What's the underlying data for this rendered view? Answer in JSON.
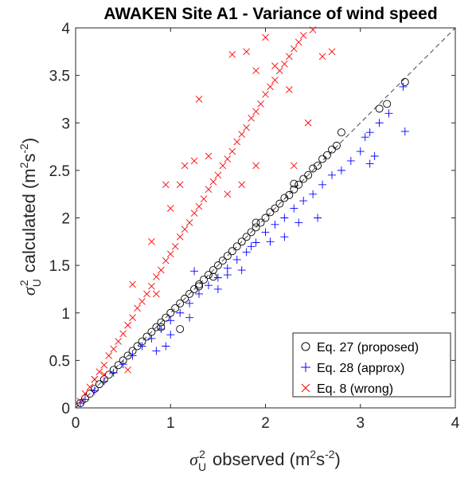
{
  "chart_data": {
    "type": "scatter",
    "title": "AWAKEN Site A1 - Variance of wind speed",
    "xlabel": "σU2 observed (m2s-2)",
    "ylabel": "σU2 calculated (m2s-2)",
    "xlim": [
      0,
      4
    ],
    "ylim": [
      0,
      4
    ],
    "xticks": [
      "0",
      "1",
      "2",
      "3",
      "4"
    ],
    "yticks": [
      "0",
      "0.5",
      "1",
      "1.5",
      "2",
      "2.5",
      "3",
      "3.5",
      "4"
    ],
    "grid": false,
    "legend_position": "bottom-right",
    "reference_line": {
      "style": "dashed",
      "color": "#333333",
      "from": [
        0,
        0
      ],
      "to": [
        4,
        4
      ]
    },
    "series": [
      {
        "name": "Eq. 27 (proposed)",
        "marker": "circle",
        "color": "#000000",
        "points": [
          [
            0.05,
            0.05
          ],
          [
            0.1,
            0.1
          ],
          [
            0.15,
            0.15
          ],
          [
            0.2,
            0.2
          ],
          [
            0.25,
            0.25
          ],
          [
            0.3,
            0.3
          ],
          [
            0.35,
            0.35
          ],
          [
            0.4,
            0.4
          ],
          [
            0.45,
            0.45
          ],
          [
            0.5,
            0.5
          ],
          [
            0.55,
            0.55
          ],
          [
            0.6,
            0.6
          ],
          [
            0.65,
            0.65
          ],
          [
            0.7,
            0.7
          ],
          [
            0.75,
            0.75
          ],
          [
            0.8,
            0.8
          ],
          [
            0.85,
            0.85
          ],
          [
            0.9,
            0.9
          ],
          [
            0.95,
            0.95
          ],
          [
            1.0,
            1.0
          ],
          [
            1.05,
            1.05
          ],
          [
            1.1,
            1.1
          ],
          [
            1.15,
            1.15
          ],
          [
            1.2,
            1.2
          ],
          [
            1.25,
            1.25
          ],
          [
            1.3,
            1.3
          ],
          [
            1.35,
            1.35
          ],
          [
            1.4,
            1.4
          ],
          [
            1.45,
            1.45
          ],
          [
            1.5,
            1.5
          ],
          [
            1.55,
            1.55
          ],
          [
            1.6,
            1.6
          ],
          [
            1.65,
            1.65
          ],
          [
            1.7,
            1.7
          ],
          [
            1.75,
            1.75
          ],
          [
            1.8,
            1.8
          ],
          [
            1.85,
            1.85
          ],
          [
            1.9,
            1.9
          ],
          [
            1.95,
            1.95
          ],
          [
            2.0,
            2.0
          ],
          [
            2.05,
            2.06
          ],
          [
            2.1,
            2.1
          ],
          [
            2.15,
            2.15
          ],
          [
            2.2,
            2.21
          ],
          [
            2.25,
            2.24
          ],
          [
            2.3,
            2.3
          ],
          [
            2.35,
            2.35
          ],
          [
            2.4,
            2.41
          ],
          [
            2.45,
            2.45
          ],
          [
            2.5,
            2.52
          ],
          [
            2.55,
            2.55
          ],
          [
            2.6,
            2.62
          ],
          [
            2.65,
            2.66
          ],
          [
            2.7,
            2.72
          ],
          [
            2.75,
            2.76
          ],
          [
            2.8,
            2.9
          ],
          [
            3.2,
            3.15
          ],
          [
            3.28,
            3.2
          ],
          [
            3.47,
            3.43
          ],
          [
            1.1,
            0.83
          ],
          [
            1.3,
            1.28
          ],
          [
            0.9,
            0.85
          ],
          [
            1.45,
            1.38
          ],
          [
            1.9,
            1.95
          ],
          [
            2.3,
            2.36
          ]
        ]
      },
      {
        "name": "Eq. 28 (approx)",
        "marker": "plus",
        "color": "#0000ff",
        "points": [
          [
            0.05,
            0.05
          ],
          [
            0.1,
            0.09
          ],
          [
            0.2,
            0.18
          ],
          [
            0.3,
            0.28
          ],
          [
            0.4,
            0.37
          ],
          [
            0.5,
            0.46
          ],
          [
            0.6,
            0.55
          ],
          [
            0.7,
            0.65
          ],
          [
            0.8,
            0.73
          ],
          [
            0.9,
            0.83
          ],
          [
            1.0,
            0.92
          ],
          [
            1.1,
            1.0
          ],
          [
            1.2,
            1.1
          ],
          [
            1.3,
            1.2
          ],
          [
            1.4,
            1.29
          ],
          [
            1.5,
            1.37
          ],
          [
            1.6,
            1.47
          ],
          [
            1.7,
            1.56
          ],
          [
            1.8,
            1.64
          ],
          [
            1.9,
            1.74
          ],
          [
            2.0,
            1.85
          ],
          [
            2.1,
            1.93
          ],
          [
            2.2,
            2.0
          ],
          [
            2.3,
            2.1
          ],
          [
            2.4,
            2.18
          ],
          [
            2.5,
            2.25
          ],
          [
            2.6,
            2.35
          ],
          [
            2.7,
            2.45
          ],
          [
            2.8,
            2.5
          ],
          [
            2.9,
            2.6
          ],
          [
            3.0,
            2.7
          ],
          [
            3.05,
            2.85
          ],
          [
            3.1,
            2.9
          ],
          [
            3.2,
            3.0
          ],
          [
            3.3,
            3.1
          ],
          [
            3.45,
            3.38
          ],
          [
            3.47,
            2.91
          ],
          [
            3.1,
            2.57
          ],
          [
            3.15,
            2.65
          ],
          [
            2.55,
            2.0
          ],
          [
            1.6,
            1.4
          ],
          [
            1.5,
            1.25
          ],
          [
            1.2,
            0.95
          ],
          [
            1.0,
            0.77
          ],
          [
            0.95,
            0.65
          ],
          [
            0.85,
            0.6
          ],
          [
            1.25,
            1.44
          ],
          [
            1.85,
            1.7
          ],
          [
            2.05,
            1.75
          ],
          [
            2.2,
            1.8
          ],
          [
            2.35,
            1.95
          ],
          [
            1.75,
            1.45
          ]
        ]
      },
      {
        "name": "Eq. 8 (wrong)",
        "marker": "x",
        "color": "#ff0000",
        "points": [
          [
            0.05,
            0.07
          ],
          [
            0.1,
            0.15
          ],
          [
            0.15,
            0.22
          ],
          [
            0.2,
            0.3
          ],
          [
            0.25,
            0.38
          ],
          [
            0.3,
            0.45
          ],
          [
            0.35,
            0.55
          ],
          [
            0.4,
            0.62
          ],
          [
            0.45,
            0.7
          ],
          [
            0.5,
            0.78
          ],
          [
            0.55,
            0.87
          ],
          [
            0.6,
            0.95
          ],
          [
            0.65,
            1.05
          ],
          [
            0.7,
            1.12
          ],
          [
            0.75,
            1.2
          ],
          [
            0.8,
            1.28
          ],
          [
            0.85,
            1.38
          ],
          [
            0.9,
            1.45
          ],
          [
            0.95,
            1.55
          ],
          [
            1.0,
            1.62
          ],
          [
            1.05,
            1.7
          ],
          [
            1.1,
            1.8
          ],
          [
            1.15,
            1.88
          ],
          [
            1.2,
            1.95
          ],
          [
            1.25,
            2.05
          ],
          [
            1.3,
            2.12
          ],
          [
            1.35,
            2.2
          ],
          [
            1.4,
            2.3
          ],
          [
            1.45,
            2.38
          ],
          [
            1.5,
            2.45
          ],
          [
            1.55,
            2.55
          ],
          [
            1.6,
            2.62
          ],
          [
            1.65,
            2.7
          ],
          [
            1.7,
            2.8
          ],
          [
            1.75,
            2.88
          ],
          [
            1.8,
            2.95
          ],
          [
            1.85,
            3.05
          ],
          [
            1.9,
            3.12
          ],
          [
            1.95,
            3.2
          ],
          [
            2.0,
            3.3
          ],
          [
            2.05,
            3.38
          ],
          [
            2.1,
            3.45
          ],
          [
            2.15,
            3.55
          ],
          [
            2.2,
            3.62
          ],
          [
            2.25,
            3.7
          ],
          [
            2.3,
            3.78
          ],
          [
            2.35,
            3.85
          ],
          [
            2.4,
            3.92
          ],
          [
            2.5,
            3.98
          ],
          [
            1.65,
            3.72
          ],
          [
            1.8,
            3.75
          ],
          [
            2.0,
            3.9
          ],
          [
            1.9,
            3.55
          ],
          [
            2.1,
            3.6
          ],
          [
            2.25,
            3.35
          ],
          [
            1.25,
            2.6
          ],
          [
            1.1,
            2.35
          ],
          [
            1.0,
            2.1
          ],
          [
            0.95,
            2.35
          ],
          [
            0.8,
            1.75
          ],
          [
            0.6,
            1.3
          ],
          [
            0.85,
            1.2
          ],
          [
            0.55,
            0.4
          ],
          [
            0.3,
            0.35
          ],
          [
            0.2,
            0.3
          ],
          [
            1.3,
            3.25
          ],
          [
            1.15,
            2.55
          ],
          [
            1.4,
            2.65
          ],
          [
            1.6,
            2.25
          ],
          [
            1.75,
            2.35
          ],
          [
            1.9,
            2.55
          ],
          [
            2.3,
            2.55
          ],
          [
            2.6,
            3.7
          ],
          [
            2.7,
            3.75
          ],
          [
            2.45,
            3.0
          ]
        ]
      }
    ]
  }
}
